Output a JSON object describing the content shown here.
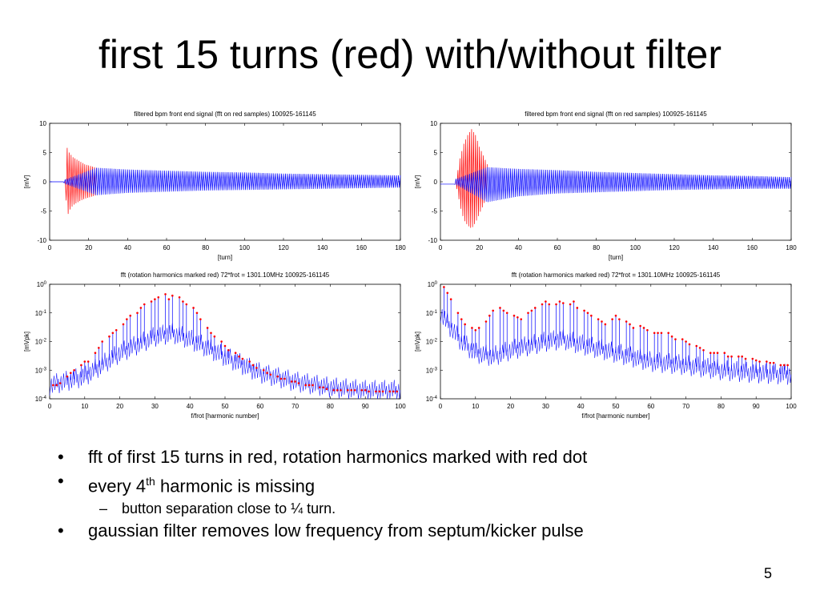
{
  "slide": {
    "title": "first 15 turns (red) with/without filter",
    "page_number": "5",
    "bullets": [
      {
        "level": 1,
        "mark": "•",
        "text": "fft of first 15 turns in red,  rotation harmonics marked with red dot"
      },
      {
        "level": 1,
        "mark": "•",
        "text": "every 4",
        "sup": "th",
        "after": " harmonic is missing"
      },
      {
        "level": 2,
        "mark": "–",
        "text": "button separation close to ¼ turn."
      },
      {
        "level": 1,
        "mark": "•",
        "text": "gaussian filter removes low frequency from septum/kicker pulse"
      }
    ]
  },
  "colors": {
    "signal": "#0000ff",
    "first_turns": "#ff0000",
    "harmonic_dot": "#ff0000",
    "axis": "#000000"
  },
  "chart_data": [
    {
      "type": "line",
      "title": "filtered bpm front end signal  (fft on red samples)   100925-161145",
      "xlabel": "[turn]",
      "ylabel": "[mV]",
      "xlim": [
        0,
        180
      ],
      "ylim": [
        -10,
        10
      ],
      "xticks": [
        0,
        20,
        40,
        60,
        80,
        100,
        120,
        140,
        160,
        180
      ],
      "yticks": [
        -10,
        -5,
        0,
        5,
        10
      ],
      "grid": false,
      "series": [
        {
          "color": "#ff0000",
          "x": [
            8,
            9,
            10,
            12,
            14,
            16,
            18,
            20,
            22,
            24
          ],
          "upper": [
            0.4,
            5.8,
            5.0,
            4.2,
            3.8,
            3.4,
            3.0,
            2.8,
            2.6,
            2.4
          ],
          "lower": [
            -0.4,
            -6.0,
            -5.0,
            -4.0,
            -3.6,
            -3.2,
            -2.9,
            -2.7,
            -2.5,
            -2.3
          ]
        },
        {
          "color": "#0000ff",
          "x": [
            0,
            7,
            8,
            24,
            40,
            60,
            80,
            100,
            120,
            140,
            160,
            180
          ],
          "upper": [
            0,
            0,
            0.4,
            2.4,
            2.1,
            1.9,
            1.7,
            1.6,
            1.4,
            1.3,
            1.2,
            1.1
          ],
          "lower": [
            0,
            0,
            -0.4,
            -2.3,
            -1.9,
            -1.7,
            -1.5,
            -1.4,
            -1.3,
            -1.2,
            -1.1,
            -1.0
          ]
        }
      ]
    },
    {
      "type": "line",
      "title": "filtered bpm front end signal  (fft on red samples)   100925-161145",
      "xlabel": "[turn]",
      "ylabel": "[mV]",
      "xlim": [
        0,
        180
      ],
      "ylim": [
        -10,
        10
      ],
      "xticks": [
        0,
        20,
        40,
        60,
        80,
        100,
        120,
        140,
        160,
        180
      ],
      "yticks": [
        -10,
        -5,
        0,
        5,
        10
      ],
      "grid": false,
      "series": [
        {
          "color": "#ff0000",
          "x": [
            8,
            9,
            10,
            12,
            14,
            16,
            18,
            20,
            22,
            24
          ],
          "upper": [
            0.5,
            2.0,
            4.0,
            6.5,
            8.0,
            9.0,
            8.0,
            6.0,
            4.5,
            3.0
          ],
          "lower": [
            -0.5,
            -2.0,
            -4.0,
            -6.5,
            -7.5,
            -8.0,
            -7.0,
            -5.5,
            -4.0,
            -2.5
          ]
        },
        {
          "color": "#0000ff",
          "x": [
            0,
            7,
            8,
            24,
            40,
            60,
            80,
            100,
            120,
            140,
            160,
            180
          ],
          "upper": [
            -0.4,
            -0.4,
            0.5,
            2.5,
            2.2,
            2.0,
            1.7,
            1.5,
            1.3,
            1.1,
            1.0,
            0.8
          ],
          "lower": [
            -0.4,
            -0.4,
            -0.5,
            -3.5,
            -2.5,
            -2.0,
            -1.8,
            -1.6,
            -1.4,
            -1.3,
            -1.2,
            -1.2
          ]
        }
      ]
    },
    {
      "type": "line",
      "title": "fft (rotation harmonics marked red)  72*frot = 1301.10MHz   100925-161145",
      "xlabel": "f/frot [harmonic number]",
      "ylabel": "[mVpk]",
      "xlim": [
        0,
        100
      ],
      "ylim": [
        0.0001,
        1
      ],
      "yscale": "log",
      "xticks": [
        0,
        10,
        20,
        30,
        40,
        50,
        60,
        70,
        80,
        90,
        100
      ],
      "yticks": [
        {
          "base": "10",
          "exp": "0"
        },
        {
          "base": "10",
          "exp": "-1"
        },
        {
          "base": "10",
          "exp": "-2"
        },
        {
          "base": "10",
          "exp": "-3"
        },
        {
          "base": "10",
          "exp": "-4"
        }
      ],
      "grid": false,
      "noise_floor": [
        {
          "x": 0,
          "y": 0.0003
        },
        {
          "x": 10,
          "y": 0.0006
        },
        {
          "x": 20,
          "y": 0.004
        },
        {
          "x": 30,
          "y": 0.015
        },
        {
          "x": 35,
          "y": 0.02
        },
        {
          "x": 40,
          "y": 0.012
        },
        {
          "x": 50,
          "y": 0.003
        },
        {
          "x": 60,
          "y": 0.0008
        },
        {
          "x": 70,
          "y": 0.0004
        },
        {
          "x": 80,
          "y": 0.00025
        },
        {
          "x": 90,
          "y": 0.0002
        },
        {
          "x": 100,
          "y": 0.0002
        }
      ],
      "harmonics": [
        {
          "n": 1,
          "v": 0.0003
        },
        {
          "n": 2,
          "v": 0.0003
        },
        {
          "n": 3,
          "v": 0.00035
        },
        {
          "n": 5,
          "v": 0.0006
        },
        {
          "n": 6,
          "v": 0.0008
        },
        {
          "n": 7,
          "v": 0.001
        },
        {
          "n": 9,
          "v": 0.0015
        },
        {
          "n": 10,
          "v": 0.002
        },
        {
          "n": 11,
          "v": 0.002
        },
        {
          "n": 13,
          "v": 0.004
        },
        {
          "n": 14,
          "v": 0.006
        },
        {
          "n": 15,
          "v": 0.01
        },
        {
          "n": 17,
          "v": 0.015
        },
        {
          "n": 18,
          "v": 0.02
        },
        {
          "n": 19,
          "v": 0.025
        },
        {
          "n": 21,
          "v": 0.04
        },
        {
          "n": 22,
          "v": 0.06
        },
        {
          "n": 23,
          "v": 0.08
        },
        {
          "n": 25,
          "v": 0.1
        },
        {
          "n": 26,
          "v": 0.15
        },
        {
          "n": 27,
          "v": 0.2
        },
        {
          "n": 29,
          "v": 0.25
        },
        {
          "n": 30,
          "v": 0.3
        },
        {
          "n": 31,
          "v": 0.35
        },
        {
          "n": 33,
          "v": 0.45
        },
        {
          "n": 34,
          "v": 0.3
        },
        {
          "n": 35,
          "v": 0.4
        },
        {
          "n": 37,
          "v": 0.35
        },
        {
          "n": 38,
          "v": 0.25
        },
        {
          "n": 39,
          "v": 0.2
        },
        {
          "n": 41,
          "v": 0.15
        },
        {
          "n": 42,
          "v": 0.1
        },
        {
          "n": 43,
          "v": 0.06
        },
        {
          "n": 45,
          "v": 0.03
        },
        {
          "n": 46,
          "v": 0.02
        },
        {
          "n": 47,
          "v": 0.015
        },
        {
          "n": 49,
          "v": 0.01
        },
        {
          "n": 50,
          "v": 0.007
        },
        {
          "n": 51,
          "v": 0.005
        },
        {
          "n": 53,
          "v": 0.004
        },
        {
          "n": 54,
          "v": 0.003
        },
        {
          "n": 55,
          "v": 0.0025
        },
        {
          "n": 57,
          "v": 0.002
        },
        {
          "n": 58,
          "v": 0.0015
        },
        {
          "n": 59,
          "v": 0.0012
        },
        {
          "n": 61,
          "v": 0.001
        },
        {
          "n": 62,
          "v": 0.0008
        },
        {
          "n": 63,
          "v": 0.0007
        },
        {
          "n": 65,
          "v": 0.0006
        },
        {
          "n": 66,
          "v": 0.0005
        },
        {
          "n": 67,
          "v": 0.0005
        },
        {
          "n": 69,
          "v": 0.0004
        },
        {
          "n": 70,
          "v": 0.0004
        },
        {
          "n": 71,
          "v": 0.00035
        },
        {
          "n": 73,
          "v": 0.0003
        },
        {
          "n": 74,
          "v": 0.0003
        },
        {
          "n": 75,
          "v": 0.0003
        },
        {
          "n": 77,
          "v": 0.00025
        },
        {
          "n": 78,
          "v": 0.00025
        },
        {
          "n": 79,
          "v": 0.00022
        },
        {
          "n": 81,
          "v": 0.0002
        },
        {
          "n": 82,
          "v": 0.0002
        },
        {
          "n": 83,
          "v": 0.0002
        },
        {
          "n": 85,
          "v": 0.0002
        },
        {
          "n": 86,
          "v": 0.0002
        },
        {
          "n": 87,
          "v": 0.0002
        },
        {
          "n": 89,
          "v": 0.0002
        },
        {
          "n": 90,
          "v": 0.0002
        },
        {
          "n": 91,
          "v": 0.00018
        },
        {
          "n": 93,
          "v": 0.00018
        },
        {
          "n": 94,
          "v": 0.00018
        },
        {
          "n": 95,
          "v": 0.00018
        },
        {
          "n": 97,
          "v": 0.00018
        },
        {
          "n": 98,
          "v": 0.00018
        },
        {
          "n": 99,
          "v": 0.00018
        }
      ]
    },
    {
      "type": "line",
      "title": "fft (rotation harmonics marked red)  72*frot = 1301.10MHz   100925-161145",
      "xlabel": "f/frot [harmonic number]",
      "ylabel": "[mVpk]",
      "xlim": [
        0,
        100
      ],
      "ylim": [
        0.0001,
        1
      ],
      "yscale": "log",
      "xticks": [
        0,
        10,
        20,
        30,
        40,
        50,
        60,
        70,
        80,
        90,
        100
      ],
      "yticks": [
        {
          "base": "10",
          "exp": "0"
        },
        {
          "base": "10",
          "exp": "-1"
        },
        {
          "base": "10",
          "exp": "-2"
        },
        {
          "base": "10",
          "exp": "-3"
        },
        {
          "base": "10",
          "exp": "-4"
        }
      ],
      "grid": false,
      "noise_floor": [
        {
          "x": 0,
          "y": 0.1
        },
        {
          "x": 3,
          "y": 0.03
        },
        {
          "x": 6,
          "y": 0.01
        },
        {
          "x": 10,
          "y": 0.004
        },
        {
          "x": 15,
          "y": 0.003
        },
        {
          "x": 20,
          "y": 0.005
        },
        {
          "x": 30,
          "y": 0.01
        },
        {
          "x": 35,
          "y": 0.012
        },
        {
          "x": 40,
          "y": 0.008
        },
        {
          "x": 50,
          "y": 0.004
        },
        {
          "x": 60,
          "y": 0.002
        },
        {
          "x": 70,
          "y": 0.0015
        },
        {
          "x": 80,
          "y": 0.001
        },
        {
          "x": 90,
          "y": 0.0008
        },
        {
          "x": 100,
          "y": 0.0007
        }
      ],
      "harmonics": [
        {
          "n": 1,
          "v": 0.8
        },
        {
          "n": 2,
          "v": 0.5
        },
        {
          "n": 3,
          "v": 0.3
        },
        {
          "n": 5,
          "v": 0.1
        },
        {
          "n": 6,
          "v": 0.06
        },
        {
          "n": 7,
          "v": 0.04
        },
        {
          "n": 9,
          "v": 0.03
        },
        {
          "n": 10,
          "v": 0.025
        },
        {
          "n": 11,
          "v": 0.03
        },
        {
          "n": 13,
          "v": 0.05
        },
        {
          "n": 14,
          "v": 0.08
        },
        {
          "n": 15,
          "v": 0.12
        },
        {
          "n": 17,
          "v": 0.15
        },
        {
          "n": 18,
          "v": 0.12
        },
        {
          "n": 19,
          "v": 0.1
        },
        {
          "n": 21,
          "v": 0.08
        },
        {
          "n": 22,
          "v": 0.07
        },
        {
          "n": 23,
          "v": 0.06
        },
        {
          "n": 25,
          "v": 0.1
        },
        {
          "n": 26,
          "v": 0.12
        },
        {
          "n": 27,
          "v": 0.15
        },
        {
          "n": 29,
          "v": 0.2
        },
        {
          "n": 30,
          "v": 0.25
        },
        {
          "n": 31,
          "v": 0.2
        },
        {
          "n": 33,
          "v": 0.2
        },
        {
          "n": 34,
          "v": 0.25
        },
        {
          "n": 35,
          "v": 0.22
        },
        {
          "n": 37,
          "v": 0.2
        },
        {
          "n": 38,
          "v": 0.25
        },
        {
          "n": 39,
          "v": 0.15
        },
        {
          "n": 41,
          "v": 0.12
        },
        {
          "n": 42,
          "v": 0.1
        },
        {
          "n": 43,
          "v": 0.08
        },
        {
          "n": 45,
          "v": 0.06
        },
        {
          "n": 46,
          "v": 0.05
        },
        {
          "n": 47,
          "v": 0.04
        },
        {
          "n": 49,
          "v": 0.06
        },
        {
          "n": 50,
          "v": 0.08
        },
        {
          "n": 51,
          "v": 0.06
        },
        {
          "n": 53,
          "v": 0.05
        },
        {
          "n": 54,
          "v": 0.04
        },
        {
          "n": 55,
          "v": 0.03
        },
        {
          "n": 57,
          "v": 0.035
        },
        {
          "n": 58,
          "v": 0.03
        },
        {
          "n": 59,
          "v": 0.025
        },
        {
          "n": 61,
          "v": 0.02
        },
        {
          "n": 62,
          "v": 0.02
        },
        {
          "n": 63,
          "v": 0.02
        },
        {
          "n": 65,
          "v": 0.02
        },
        {
          "n": 66,
          "v": 0.015
        },
        {
          "n": 67,
          "v": 0.012
        },
        {
          "n": 69,
          "v": 0.012
        },
        {
          "n": 70,
          "v": 0.01
        },
        {
          "n": 71,
          "v": 0.008
        },
        {
          "n": 73,
          "v": 0.007
        },
        {
          "n": 74,
          "v": 0.006
        },
        {
          "n": 75,
          "v": 0.005
        },
        {
          "n": 77,
          "v": 0.004
        },
        {
          "n": 78,
          "v": 0.004
        },
        {
          "n": 79,
          "v": 0.004
        },
        {
          "n": 81,
          "v": 0.004
        },
        {
          "n": 82,
          "v": 0.003
        },
        {
          "n": 83,
          "v": 0.003
        },
        {
          "n": 85,
          "v": 0.003
        },
        {
          "n": 86,
          "v": 0.003
        },
        {
          "n": 87,
          "v": 0.0025
        },
        {
          "n": 89,
          "v": 0.0025
        },
        {
          "n": 90,
          "v": 0.0022
        },
        {
          "n": 91,
          "v": 0.002
        },
        {
          "n": 93,
          "v": 0.002
        },
        {
          "n": 94,
          "v": 0.0018
        },
        {
          "n": 95,
          "v": 0.0018
        },
        {
          "n": 97,
          "v": 0.0015
        },
        {
          "n": 98,
          "v": 0.0015
        },
        {
          "n": 99,
          "v": 0.0015
        }
      ]
    }
  ]
}
